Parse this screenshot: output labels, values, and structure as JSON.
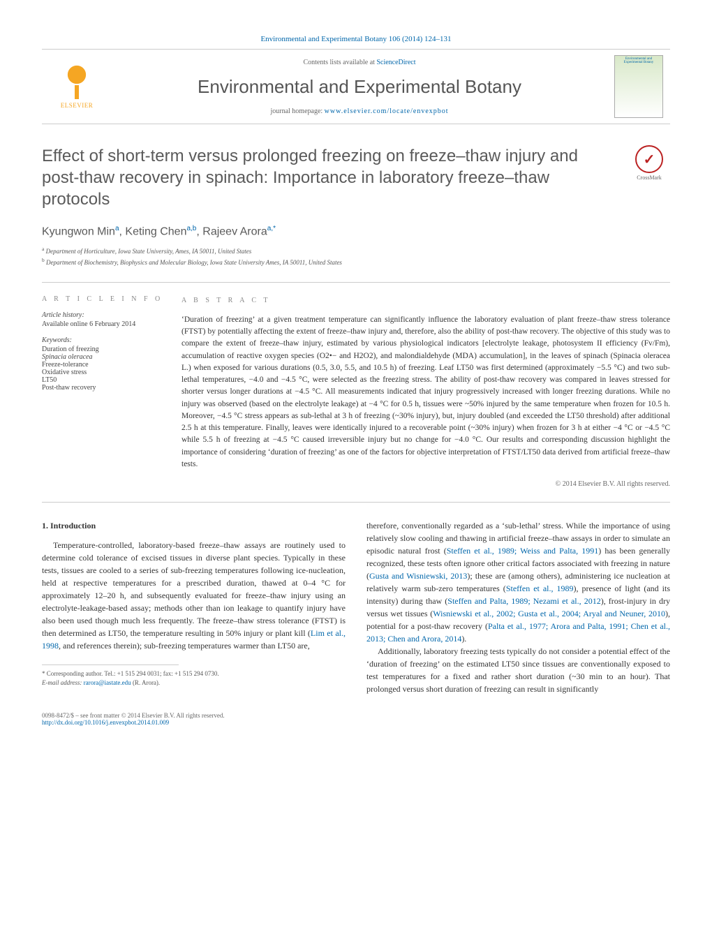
{
  "journal_ref": "Environmental and Experimental Botany 106 (2014) 124–131",
  "header": {
    "contents_prefix": "Contents lists available at ",
    "contents_link": "ScienceDirect",
    "journal_title": "Environmental and Experimental Botany",
    "homepage_prefix": "journal homepage: ",
    "homepage_url": "www.elsevier.com/locate/envexpbot",
    "publisher_logo_label": "ELSEVIER",
    "cover_caption": "Environmental and Experimental Botany"
  },
  "crossmark_label": "CrossMark",
  "title": "Effect of short-term versus prolonged freezing on freeze–thaw injury and post-thaw recovery in spinach: Importance in laboratory freeze–thaw protocols",
  "authors_html": "Kyungwon Min<sup>a</sup>, Keting Chen<sup>a,b</sup>, Rajeev Arora<sup>a,*</sup>",
  "affiliations": [
    "a Department of Horticulture, Iowa State University, Ames, IA 50011, United States",
    "b Department of Biochemistry, Biophysics and Molecular Biology, Iowa State University Ames, IA 50011, United States"
  ],
  "article_info": {
    "heading": "A R T I C L E   I N F O",
    "history_label": "Article history:",
    "history_value": "Available online 6 February 2014",
    "keywords_label": "Keywords:",
    "keywords": [
      "Duration of freezing",
      "Spinacia oleracea",
      "Freeze-tolerance",
      "Oxidative stress",
      "LT50",
      "Post-thaw recovery"
    ]
  },
  "abstract": {
    "heading": "A B S T R A C T",
    "text": "‘Duration of freezing’ at a given treatment temperature can significantly influence the laboratory evaluation of plant freeze–thaw stress tolerance (FTST) by potentially affecting the extent of freeze–thaw injury and, therefore, also the ability of post-thaw recovery. The objective of this study was to compare the extent of freeze–thaw injury, estimated by various physiological indicators [electrolyte leakage, photosystem II efficiency (Fv/Fm), accumulation of reactive oxygen species (O2•− and H2O2), and malondialdehyde (MDA) accumulation], in the leaves of spinach (Spinacia oleracea L.) when exposed for various durations (0.5, 3.0, 5.5, and 10.5 h) of freezing. Leaf LT50 was first determined (approximately −5.5 °C) and two sub-lethal temperatures, −4.0 and −4.5 °C, were selected as the freezing stress. The ability of post-thaw recovery was compared in leaves stressed for shorter versus longer durations at −4.5 °C. All measurements indicated that injury progressively increased with longer freezing durations. While no injury was observed (based on the electrolyte leakage) at −4 °C for 0.5 h, tissues were ~50% injured by the same temperature when frozen for 10.5 h. Moreover, −4.5 °C stress appears as sub-lethal at 3 h of freezing (~30% injury), but, injury doubled (and exceeded the LT50 threshold) after additional 2.5 h at this temperature. Finally, leaves were identically injured to a recoverable point (~30% injury) when frozen for 3 h at either −4 °C or −4.5 °C while 5.5 h of freezing at −4.5 °C caused irreversible injury but no change for −4.0 °C. Our results and corresponding discussion highlight the importance of considering ‘duration of freezing’ as one of the factors for objective interpretation of FTST/LT50 data derived from artificial freeze–thaw tests.",
    "copyright": "© 2014 Elsevier B.V. All rights reserved."
  },
  "body": {
    "section_number": "1.",
    "section_title": "Introduction",
    "col1_p1": "Temperature-controlled, laboratory-based freeze–thaw assays are routinely used to determine cold tolerance of excised tissues in diverse plant species. Typically in these tests, tissues are cooled to a series of sub-freezing temperatures following ice-nucleation, held at respective temperatures for a prescribed duration, thawed at 0–4 °C for approximately 12–20 h, and subsequently evaluated for freeze–thaw injury using an electrolyte-leakage-based assay; methods other than ion leakage to quantify injury have also been used though much less frequently. The freeze–thaw stress tolerance (FTST) is then determined as LT50, the temperature resulting in 50% injury or plant kill (",
    "col1_link1": "Lim et al., 1998",
    "col1_p1_tail": ", and references therein); sub-freezing temperatures warmer than LT50 are,",
    "col2_p1_a": "therefore, conventionally regarded as a ‘sub-lethal’ stress. While the importance of using relatively slow cooling and thawing in artificial freeze–thaw assays in order to simulate an episodic natural frost (",
    "col2_link1": "Steffen et al., 1989; Weiss and Palta, 1991",
    "col2_p1_b": ") has been generally recognized, these tests often ignore other critical factors associated with freezing in nature (",
    "col2_link2": "Gusta and Wisniewski, 2013",
    "col2_p1_c": "); these are (among others), administering ice nucleation at relatively warm sub-zero temperatures (",
    "col2_link3": "Steffen et al., 1989",
    "col2_p1_d": "), presence of light (and its intensity) during thaw (",
    "col2_link4": "Steffen and Palta, 1989; Nezami et al., 2012",
    "col2_p1_e": "), frost-injury in dry versus wet tissues (",
    "col2_link5": "Wisniewski et al., 2002; Gusta et al., 2004; Aryal and Neuner, 2010",
    "col2_p1_f": "), potential for a post-thaw recovery (",
    "col2_link6": "Palta et al., 1977; Arora and Palta, 1991; Chen et al., 2013; Chen and Arora, 2014",
    "col2_p1_g": ").",
    "col2_p2": "Additionally, laboratory freezing tests typically do not consider a potential effect of the ‘duration of freezing’ on the estimated LT50 since tissues are conventionally exposed to test temperatures for a fixed and rather short duration (~30 min to an hour). That prolonged versus short duration of freezing can result in significantly"
  },
  "footnote": {
    "corr": "* Corresponding author. Tel.: +1 515 294 0031; fax: +1 515 294 0730.",
    "email_label": "E-mail address: ",
    "email": "rarora@iastate.edu",
    "email_tail": " (R. Arora)."
  },
  "footer": {
    "left_line1": "0098-8472/$ – see front matter © 2014 Elsevier B.V. All rights reserved.",
    "doi": "http://dx.doi.org/10.1016/j.envexpbot.2014.01.009"
  },
  "colors": {
    "link": "#0066aa",
    "heading_gray": "#5a5a5a",
    "elsevier_orange": "#f5a623"
  }
}
